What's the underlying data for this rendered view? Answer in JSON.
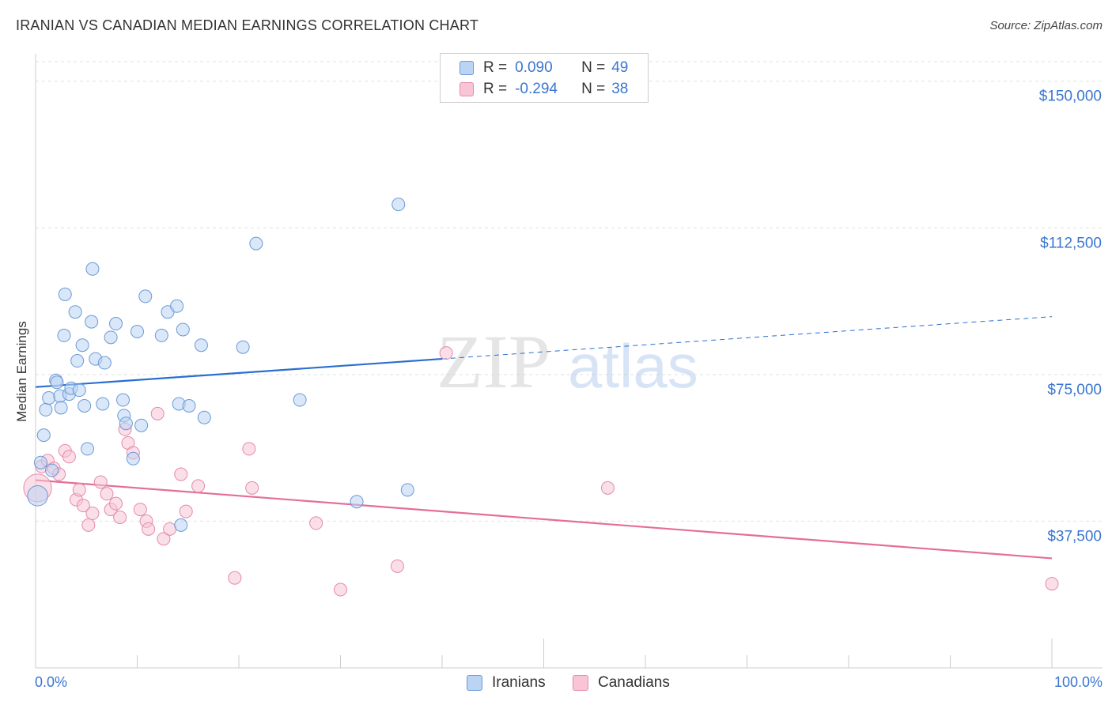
{
  "title": "IRANIAN VS CANADIAN MEDIAN EARNINGS CORRELATION CHART",
  "source": "Source: ZipAtlas.com",
  "watermark": {
    "zip": "ZIP",
    "atlas": "atlas"
  },
  "colors": {
    "blue_fill": "#bcd4f4",
    "blue_stroke": "#6a9ad6",
    "blue_line": "#2a6fcf",
    "pink_fill": "#f8c4d6",
    "pink_stroke": "#e38aaa",
    "pink_line": "#e46e98",
    "axis_text": "#3a76d0",
    "grid": "#e0e0e0"
  },
  "legend": {
    "r_label": "R =",
    "n_label": "N =",
    "rows": [
      {
        "series": "Iranians",
        "r": "0.090",
        "n": "49"
      },
      {
        "series": "Canadians",
        "r": "-0.294",
        "n": "38"
      }
    ]
  },
  "chart_data": {
    "type": "scatter",
    "title": "IRANIAN VS CANADIAN MEDIAN EARNINGS CORRELATION CHART",
    "xlabel": "",
    "ylabel": "Median Earnings",
    "xlim": [
      0,
      100
    ],
    "ylim": [
      0,
      155000
    ],
    "x_tick_labels": {
      "left": "0.0%",
      "right": "100.0%"
    },
    "y_ticks": [
      {
        "value": 37500,
        "label": "$37,500"
      },
      {
        "value": 75000,
        "label": "$75,000"
      },
      {
        "value": 112500,
        "label": "$112,500"
      },
      {
        "value": 150000,
        "label": "$150,000"
      }
    ],
    "series": [
      {
        "name": "Iranians",
        "r": 0.09,
        "n": 49,
        "trend": {
          "x_start": 0,
          "y_start": 71800,
          "x_end": 100,
          "y_end": 89800,
          "solid_until_x": 40
        },
        "points": [
          [
            0.2,
            44000,
            1.6
          ],
          [
            0.5,
            52500,
            1
          ],
          [
            0.8,
            59500,
            1
          ],
          [
            1.0,
            66000,
            1
          ],
          [
            1.3,
            69000,
            1
          ],
          [
            1.6,
            50500,
            1
          ],
          [
            2.0,
            73500,
            1
          ],
          [
            2.1,
            73000,
            1
          ],
          [
            2.4,
            69500,
            1
          ],
          [
            2.5,
            66500,
            1
          ],
          [
            2.8,
            85000,
            1
          ],
          [
            2.9,
            95500,
            1
          ],
          [
            3.3,
            70000,
            1
          ],
          [
            3.5,
            71500,
            1
          ],
          [
            3.9,
            91000,
            1
          ],
          [
            4.1,
            78500,
            1
          ],
          [
            4.3,
            71000,
            1
          ],
          [
            4.6,
            82500,
            1
          ],
          [
            4.8,
            67000,
            1
          ],
          [
            5.1,
            56000,
            1
          ],
          [
            5.5,
            88500,
            1
          ],
          [
            5.6,
            102000,
            1
          ],
          [
            5.9,
            79000,
            1
          ],
          [
            6.6,
            67500,
            1
          ],
          [
            6.8,
            78000,
            1
          ],
          [
            7.4,
            84500,
            1
          ],
          [
            7.9,
            88000,
            1
          ],
          [
            8.6,
            68500,
            1
          ],
          [
            8.7,
            64500,
            1
          ],
          [
            8.9,
            62500,
            1
          ],
          [
            9.6,
            53500,
            1
          ],
          [
            10.0,
            86000,
            1
          ],
          [
            10.4,
            62000,
            1
          ],
          [
            10.8,
            95000,
            1
          ],
          [
            12.4,
            85000,
            1
          ],
          [
            13.0,
            91000,
            1
          ],
          [
            13.9,
            92500,
            1
          ],
          [
            14.1,
            67500,
            1
          ],
          [
            14.3,
            36500,
            1
          ],
          [
            14.5,
            86500,
            1
          ],
          [
            15.1,
            67000,
            1
          ],
          [
            16.3,
            82500,
            1
          ],
          [
            16.6,
            64000,
            1
          ],
          [
            20.4,
            82000,
            1
          ],
          [
            21.7,
            108500,
            1
          ],
          [
            26.0,
            68500,
            1
          ],
          [
            31.6,
            42500,
            1
          ],
          [
            35.7,
            118500,
            1
          ],
          [
            36.6,
            45500,
            1
          ]
        ]
      },
      {
        "name": "Canadians",
        "r": -0.294,
        "n": 38,
        "trend": {
          "x_start": 0,
          "y_start": 48000,
          "x_end": 100,
          "y_end": 28000,
          "solid_until_x": 100
        },
        "points": [
          [
            0.2,
            46000,
            2.2
          ],
          [
            0.6,
            51500,
            1
          ],
          [
            1.2,
            53000,
            1
          ],
          [
            1.8,
            51000,
            1
          ],
          [
            2.3,
            49500,
            1
          ],
          [
            2.9,
            55500,
            1
          ],
          [
            3.3,
            54000,
            1
          ],
          [
            4.0,
            43000,
            1
          ],
          [
            4.3,
            45500,
            1
          ],
          [
            4.7,
            41500,
            1
          ],
          [
            5.2,
            36500,
            1
          ],
          [
            5.6,
            39500,
            1
          ],
          [
            6.4,
            47500,
            1
          ],
          [
            7.0,
            44500,
            1
          ],
          [
            7.4,
            40500,
            1
          ],
          [
            7.9,
            42000,
            1
          ],
          [
            8.3,
            38500,
            1
          ],
          [
            8.8,
            61000,
            1
          ],
          [
            9.1,
            57500,
            1
          ],
          [
            9.6,
            55000,
            1
          ],
          [
            10.3,
            40500,
            1
          ],
          [
            10.9,
            37500,
            1
          ],
          [
            11.1,
            35500,
            1
          ],
          [
            12.0,
            65000,
            1
          ],
          [
            12.6,
            33000,
            1
          ],
          [
            13.2,
            35500,
            1
          ],
          [
            14.3,
            49500,
            1
          ],
          [
            14.8,
            40000,
            1
          ],
          [
            16.0,
            46500,
            1
          ],
          [
            19.6,
            23000,
            1
          ],
          [
            21.0,
            56000,
            1
          ],
          [
            21.3,
            46000,
            1
          ],
          [
            27.6,
            37000,
            1
          ],
          [
            30.0,
            20000,
            1
          ],
          [
            35.6,
            26000,
            1
          ],
          [
            40.4,
            80500,
            1
          ],
          [
            56.3,
            46000,
            1
          ],
          [
            100.0,
            21500,
            1
          ]
        ]
      }
    ]
  }
}
